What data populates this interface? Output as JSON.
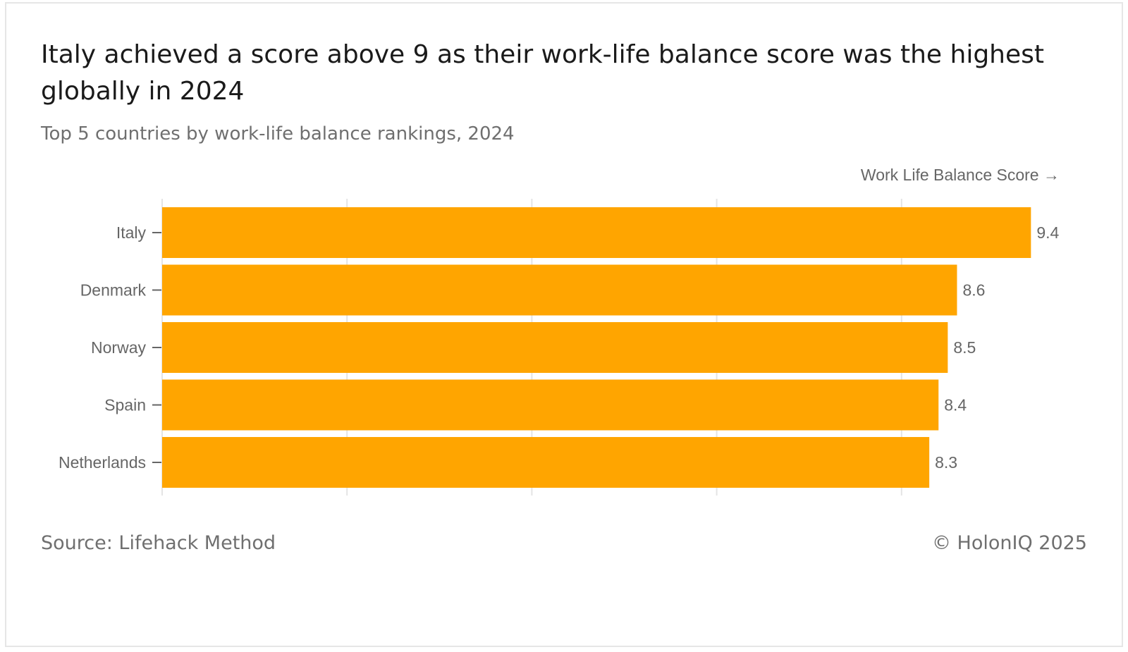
{
  "header": {
    "title": "Italy achieved a score above 9 as their work-life balance score was the highest globally in 2024",
    "subtitle": "Top 5 countries by work-life balance rankings, 2024"
  },
  "footer": {
    "source": "Source: Lifehack Method",
    "copyright": "© HolonIQ 2025"
  },
  "colors": {
    "bar": "#ffa500",
    "grid": "#e4e4e4",
    "label": "#666666"
  },
  "chart_data": {
    "type": "bar",
    "orientation": "horizontal",
    "xlabel": "Work Life Balance Score →",
    "ylabel": "",
    "categories": [
      "Italy",
      "Denmark",
      "Norway",
      "Spain",
      "Netherlands"
    ],
    "values": [
      9.4,
      8.6,
      8.5,
      8.4,
      8.3
    ],
    "value_labels": [
      "9.4",
      "8.6",
      "8.5",
      "8.4",
      "8.3"
    ],
    "xlim": [
      0,
      10
    ],
    "grid": true,
    "x_tick_labels_shown": false
  }
}
